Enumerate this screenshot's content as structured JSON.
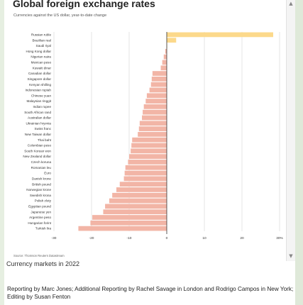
{
  "header": {
    "title": "Global foreign exchange rates",
    "subtitle": "Currencies against the US dollar, year-to-date change"
  },
  "footer": {
    "source": "Source: Thomson Reuters Datastream",
    "caption": "Currency markets in 2022",
    "credit": "Reporting by Marc Jones; Additional Reporting by Rachel Savage in London and Rodrigo Campos in New York; Editing by Susan Fenton"
  },
  "scroll": {
    "up_icon": "chevron-up-icon",
    "down_icon": "chevron-down-icon"
  },
  "colors": {
    "positive": "#fcd98b",
    "negative": "#f2b5a6",
    "zero_line": "#333333",
    "grid": "#d6d6d6"
  },
  "chart_data": {
    "type": "bar",
    "orientation": "horizontal",
    "title": "Global foreign exchange rates",
    "subtitle": "Currencies against the US dollar, year-to-date change",
    "xlabel": "",
    "ylabel": "",
    "xlim": [
      -30,
      30
    ],
    "ticks": [
      -30,
      -20,
      -10,
      0,
      10,
      20,
      30
    ],
    "tick_labels": [
      "-30",
      "-20",
      "-10",
      "0",
      "10",
      "20",
      "30%"
    ],
    "grid": true,
    "categories": [
      "Russian ruble",
      "Brazilian real",
      "Saudi riyal",
      "Hong Kong dollar",
      "Nigerian naira",
      "Mexican peso",
      "Kuwaiti dinar",
      "Canadian dollar",
      "Singapore dollar",
      "Kenyan shilling",
      "Indonesian rupiah",
      "Chinese yuan",
      "Malaysian ringgit",
      "Indian rupee",
      "South African rand",
      "Australian dollar",
      "Ukrainian hryvnia",
      "Swiss franc",
      "New Taiwan dollar",
      "Thai baht",
      "Colombian peso",
      "South Korean won",
      "New Zealand dollar",
      "Czech koruna",
      "Romanian leu",
      "Euro",
      "Danish krone",
      "British pound",
      "Norwegian krone",
      "Swedish krona",
      "Polish zloty",
      "Egyptian pound",
      "Japanese yen",
      "Argentine peso",
      "Hungarian forint",
      "Turkish lira"
    ],
    "values": [
      28.3,
      2.5,
      0.1,
      -0.4,
      -0.8,
      -1.2,
      -1.6,
      -3.8,
      -4.0,
      -4.2,
      -4.6,
      -5.3,
      -5.6,
      -6.1,
      -6.4,
      -6.6,
      -7.2,
      -7.4,
      -7.7,
      -9.2,
      -9.4,
      -9.6,
      -10.0,
      -10.3,
      -11.0,
      -11.2,
      -11.4,
      -12.5,
      -13.4,
      -14.5,
      -15.3,
      -16.4,
      -16.9,
      -19.8,
      -20.3,
      -23.5
    ]
  }
}
